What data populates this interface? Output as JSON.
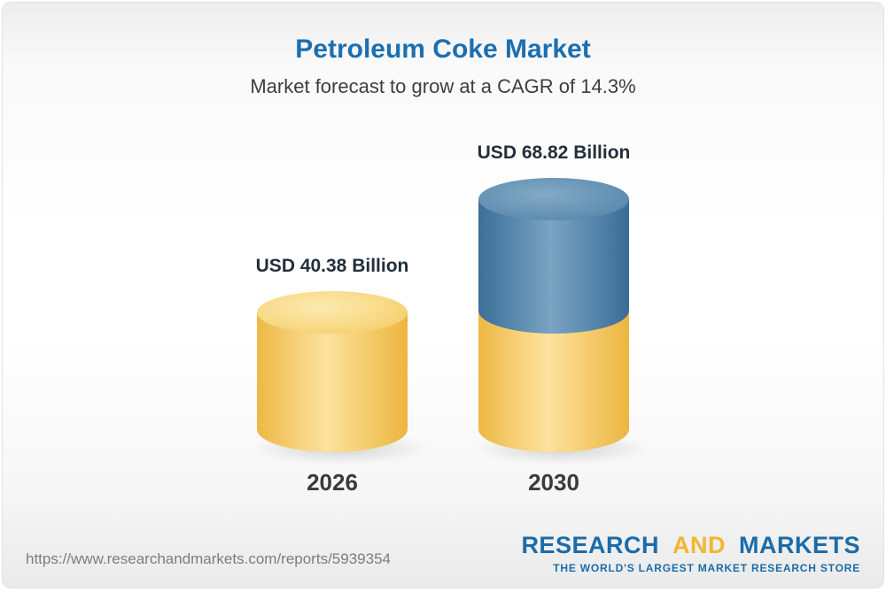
{
  "header": {
    "title": "Petroleum Coke Market",
    "subtitle": "Market forecast to grow at a CAGR of 14.3%"
  },
  "chart_data": {
    "type": "bar",
    "style": "3d-cylinder",
    "title": "Petroleum Coke Market",
    "subtitle": "Market forecast to grow at a CAGR of 14.3%",
    "cagr_percent": 14.3,
    "unit": "USD Billion",
    "categories": [
      "2026",
      "2030"
    ],
    "values": [
      40.38,
      68.82
    ],
    "value_labels": [
      "USD 40.38 Billion",
      "USD 68.82 Billion"
    ],
    "ylim": [
      0,
      68.82
    ],
    "grid": false,
    "legend_position": "none",
    "bar_colors": {
      "bar_2026": "#F2C14E",
      "bar_2030_base": "#F2C14E",
      "bar_2030_growth": "#4A7EA8"
    }
  },
  "footer": {
    "url": "https://www.researchandmarkets.com/reports/5939354",
    "logo": {
      "word1": "RESEARCH",
      "word2": "AND",
      "word3": "MARKETS",
      "tagline": "THE WORLD'S LARGEST MARKET RESEARCH STORE"
    }
  },
  "colors": {
    "title_blue": "#1C6FB0",
    "subtitle_gray": "#3E3E3E",
    "label_dark": "#232F3A",
    "gold_light": "#FBE29E",
    "gold_mid": "#F8DA85",
    "gold_dark": "#EDB844",
    "blue_light": "#7BA3C2",
    "blue_mid": "#6391B4",
    "blue_dark": "#3C6F98",
    "logo_blue": "#1B6CA8",
    "logo_yellow": "#F2B630",
    "url_gray": "#7D7D7D"
  }
}
